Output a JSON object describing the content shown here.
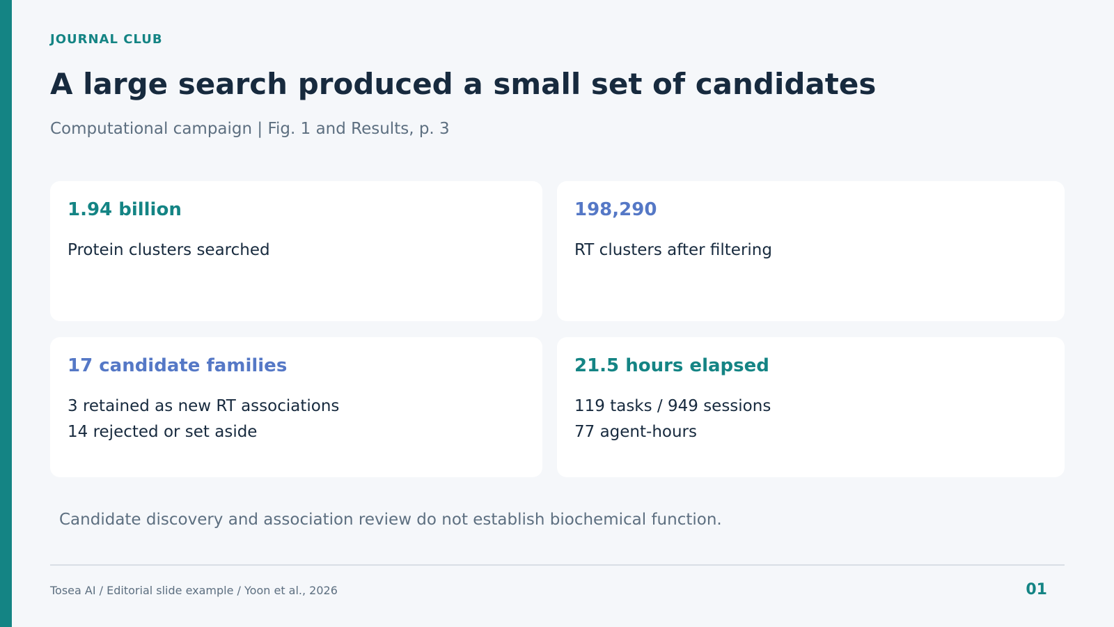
{
  "slide": {
    "kicker": "JOURNAL CLUB",
    "title": "A large search produced a small set of candidates",
    "subtitle": "Computational campaign  |  Fig. 1 and Results, p. 3",
    "cards": [
      {
        "stat": "1.94 billion",
        "stat_color": "#148484",
        "lines": [
          "Protein clusters searched"
        ]
      },
      {
        "stat": "198,290",
        "stat_color": "#5578c6",
        "lines": [
          "RT clusters after filtering"
        ]
      },
      {
        "stat": "17 candidate families",
        "stat_color": "#5578c6",
        "lines": [
          "3 retained as new RT associations",
          "14 rejected or set aside"
        ]
      },
      {
        "stat": "21.5 hours elapsed",
        "stat_color": "#148484",
        "lines": [
          "119 tasks  /  949 sessions",
          "77 agent-hours"
        ]
      }
    ],
    "disclaimer": "Candidate discovery and association review do not establish biochemical function.",
    "footer": {
      "credit": "Tosea AI  /  Editorial slide example  /  Yoon et al., 2026",
      "page_number": "01"
    }
  },
  "colors": {
    "accent": "#148484",
    "secondary_accent": "#5578c6",
    "background": "#f5f7fa",
    "card": "#ffffff",
    "text": "#172a3e",
    "muted": "#5d6f80"
  }
}
